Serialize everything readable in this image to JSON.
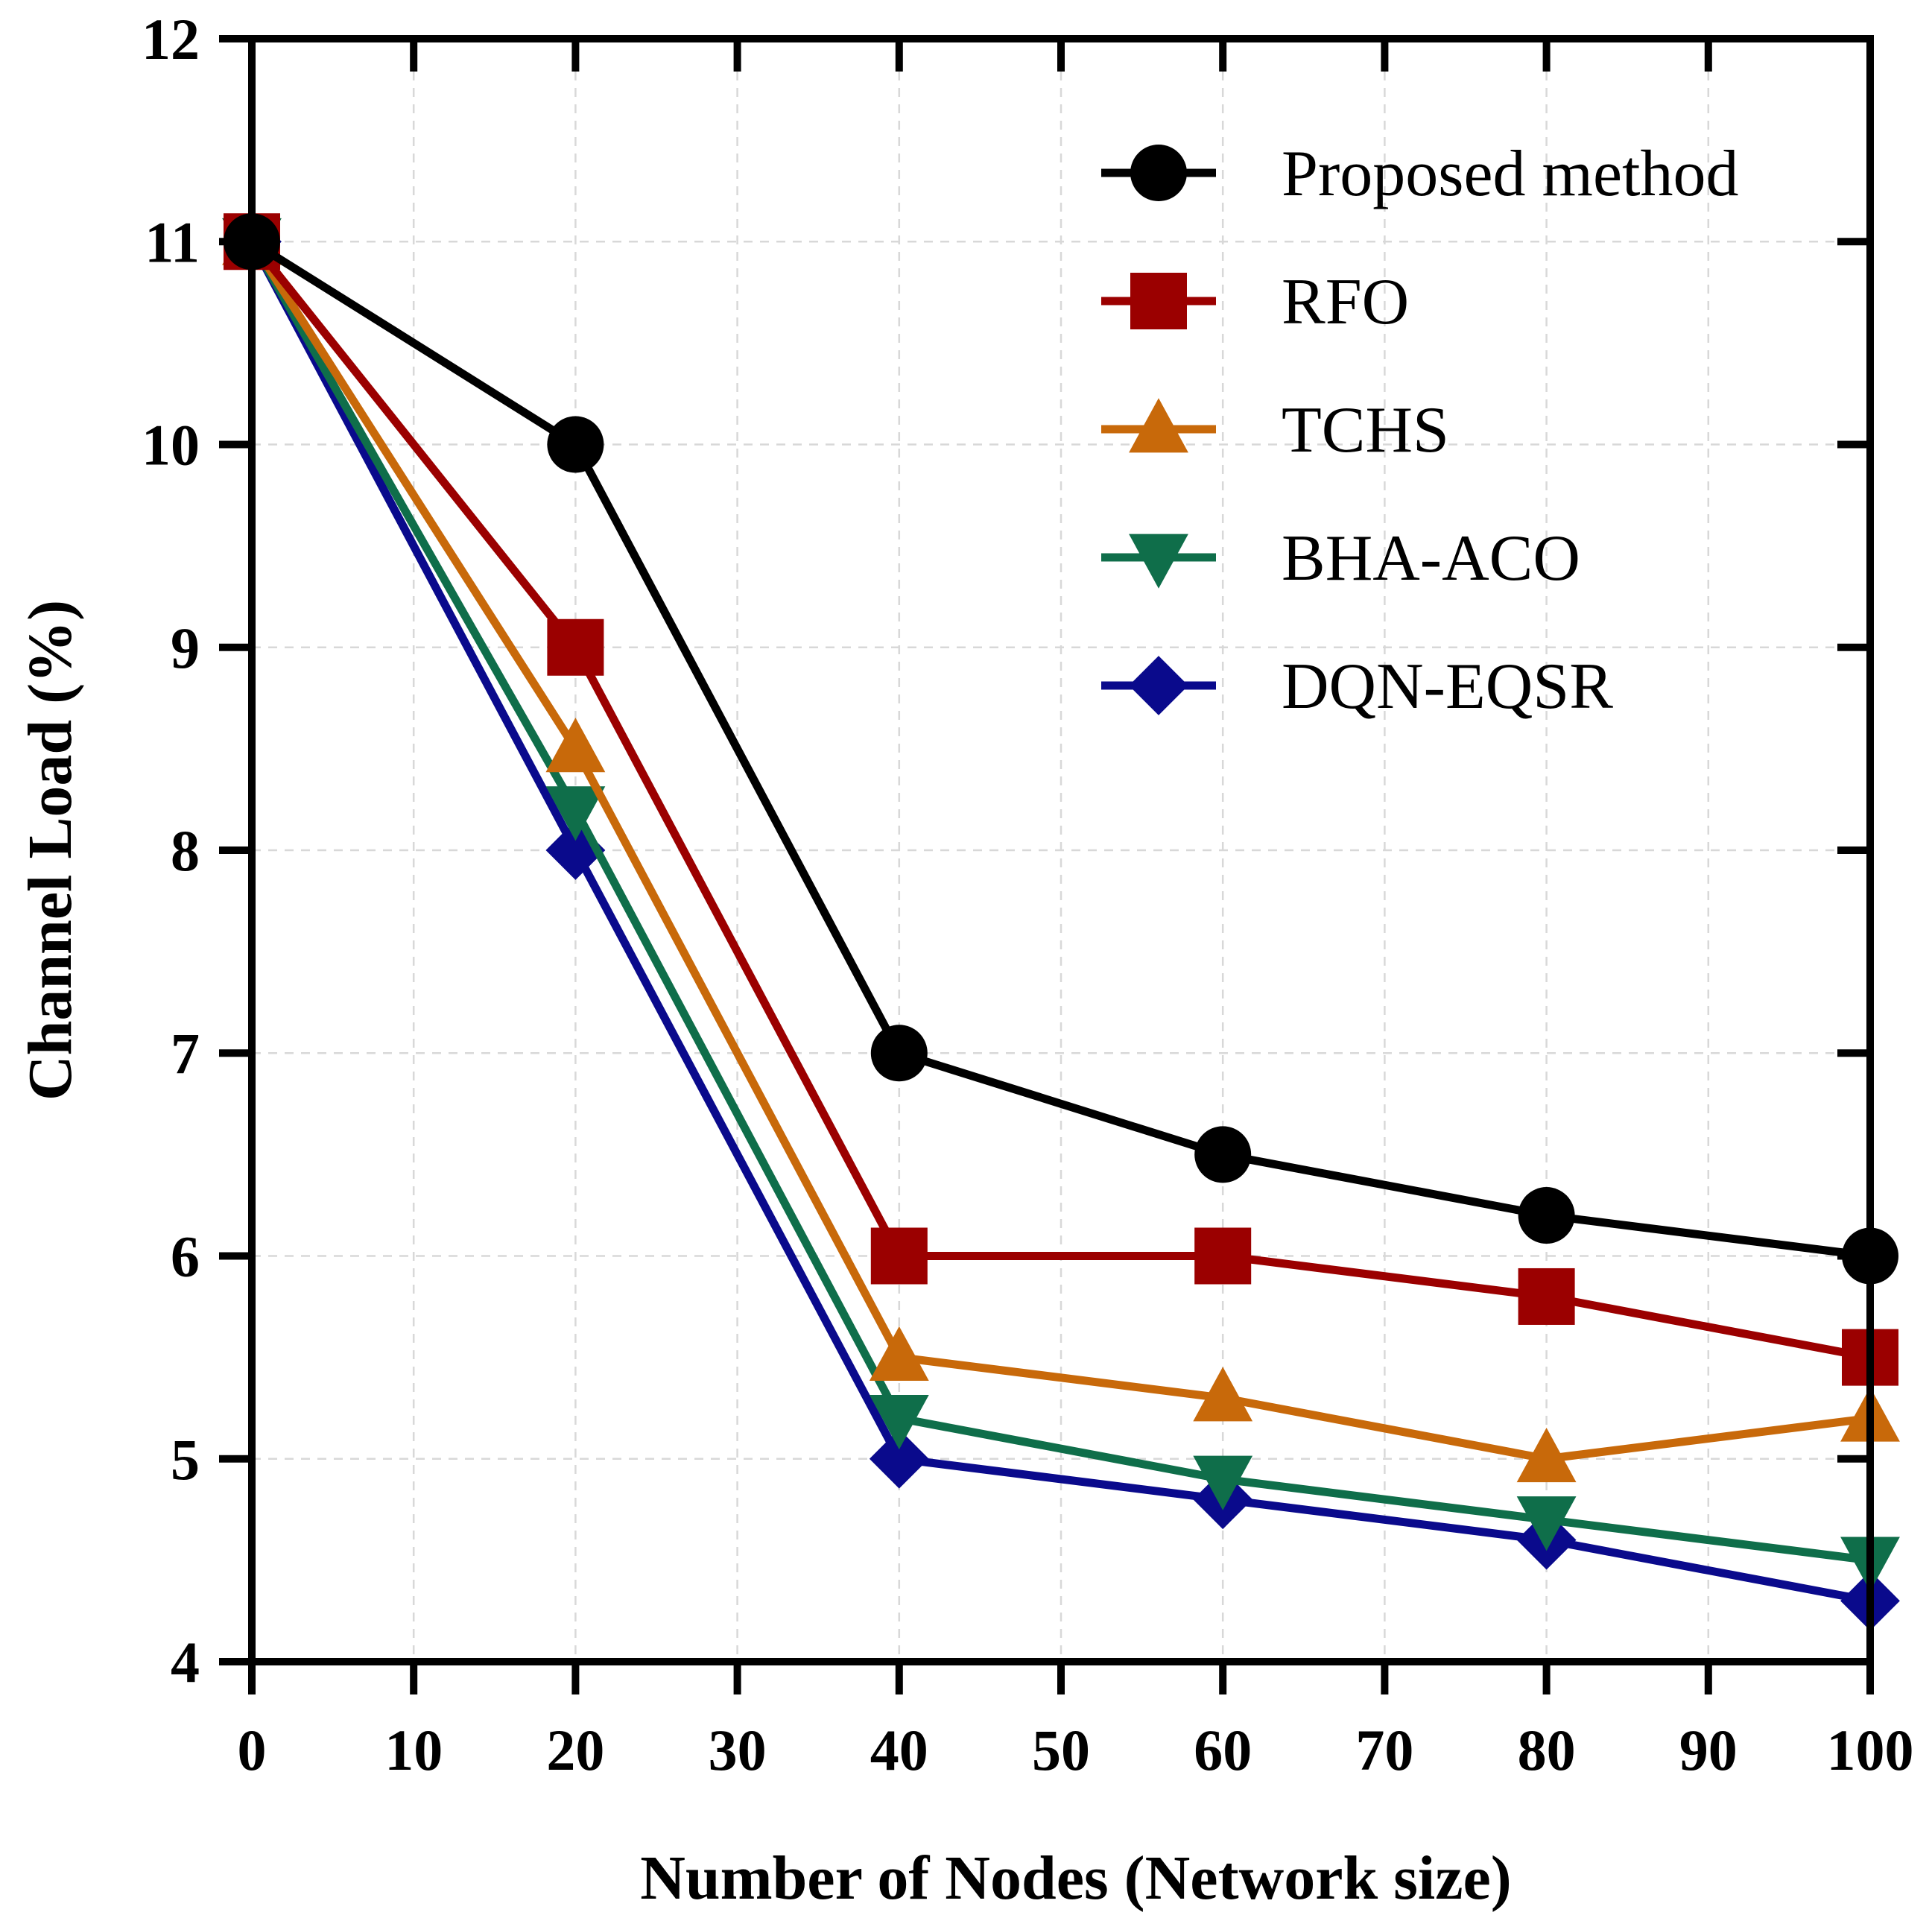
{
  "chart_data": {
    "type": "line",
    "title": "",
    "xlabel": "Number of Nodes (Network size)",
    "ylabel": "Channel Load (%)",
    "xlim": [
      0,
      100
    ],
    "ylim": [
      4,
      12
    ],
    "xticks": [
      0,
      10,
      20,
      30,
      40,
      50,
      60,
      70,
      80,
      90,
      100
    ],
    "yticks": [
      4,
      5,
      6,
      7,
      8,
      9,
      10,
      11,
      12
    ],
    "x": [
      0,
      20,
      40,
      60,
      80,
      100
    ],
    "grid": true,
    "legend_position": "top-right",
    "series": [
      {
        "name": "Proposed method",
        "marker": "circle",
        "color": "#000000",
        "values": [
          11,
          10,
          7,
          6.5,
          6.2,
          6
        ]
      },
      {
        "name": "RFO",
        "marker": "square",
        "color": "#9b0000",
        "values": [
          11,
          9,
          6,
          6,
          5.8,
          5.5
        ]
      },
      {
        "name": "TCHS",
        "marker": "triangle-up",
        "color": "#c8690a",
        "values": [
          11,
          8.5,
          5.5,
          5.3,
          5,
          5.2
        ]
      },
      {
        "name": "BHA-ACO",
        "marker": "triangle-down",
        "color": "#0f6e4a",
        "values": [
          11,
          8.2,
          5.2,
          4.9,
          4.7,
          4.5
        ]
      },
      {
        "name": "DQN-EQSR",
        "marker": "diamond",
        "color": "#0a0a8c",
        "values": [
          11,
          8,
          5,
          4.8,
          4.6,
          4.3
        ]
      }
    ]
  }
}
